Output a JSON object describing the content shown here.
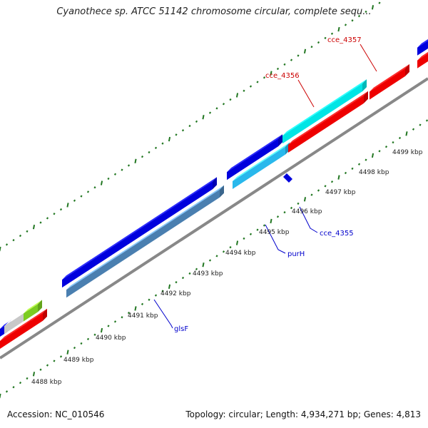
{
  "title": "Cyanothece sp. ATCC 51142 chromosome circular, complete sequ...",
  "ticks": [
    {
      "label": "4488 kbp"
    },
    {
      "label": "4489 kbp"
    },
    {
      "label": "4490 kbp"
    },
    {
      "label": "4491 kbp"
    },
    {
      "label": "4492 kbp"
    },
    {
      "label": "4493 kbp"
    },
    {
      "label": "4494 kbp"
    },
    {
      "label": "4495 kbp"
    },
    {
      "label": "4496 kbp"
    },
    {
      "label": "4497 kbp"
    },
    {
      "label": "4498 kbp"
    },
    {
      "label": "4499 kbp"
    }
  ],
  "genes": [
    {
      "label": "glsF",
      "color": "#0000cc"
    },
    {
      "label": "purH",
      "color": "#0000cc"
    },
    {
      "label": "cce_4355",
      "color": "#0000cc"
    },
    {
      "label": "cce_4356",
      "color": "#cc0000"
    },
    {
      "label": "cce_4357",
      "color": "#cc0000"
    }
  ],
  "colors": {
    "forward_blue": "#0000dd",
    "steel_blue": "#4a7fb0",
    "sky_blue": "#29b8ec",
    "cyan": "#00e5e5",
    "red": "#ee0000",
    "grey_gene": "#c8c8c8",
    "green_gene": "#7ccc22",
    "backbone": "#888888",
    "tick": "#227722"
  },
  "footer": {
    "accession": "Accession: NC_010546",
    "summary": "Topology: circular; Length: 4,934,271 bp; Genes: 4,813"
  }
}
